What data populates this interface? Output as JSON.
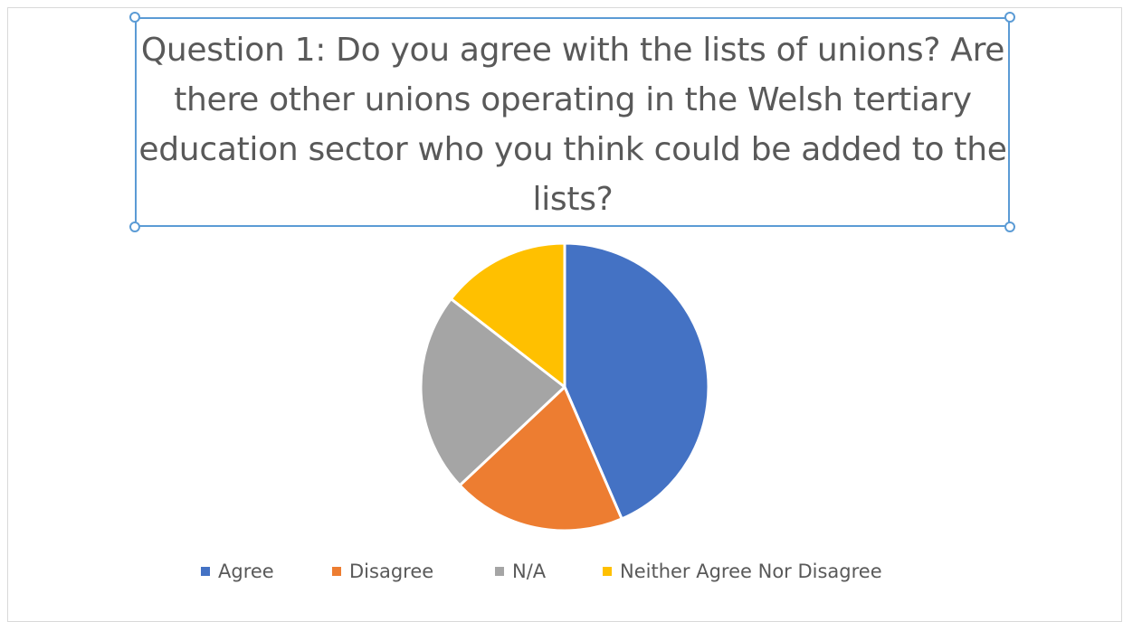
{
  "chart_data": {
    "type": "pie",
    "title": "Question 1: Do you agree with the lists of unions? Are there other unions operating in the Welsh tertiary education sector who you think could be added to the lists?",
    "categories": [
      "Agree",
      "Disagree",
      "N/A",
      "Neither Agree Nor Disagree"
    ],
    "values": [
      43.5,
      19.5,
      22.5,
      14.5
    ],
    "colors": [
      "#4472c4",
      "#ed7d31",
      "#a5a5a5",
      "#ffc000"
    ],
    "legend_position": "bottom"
  }
}
